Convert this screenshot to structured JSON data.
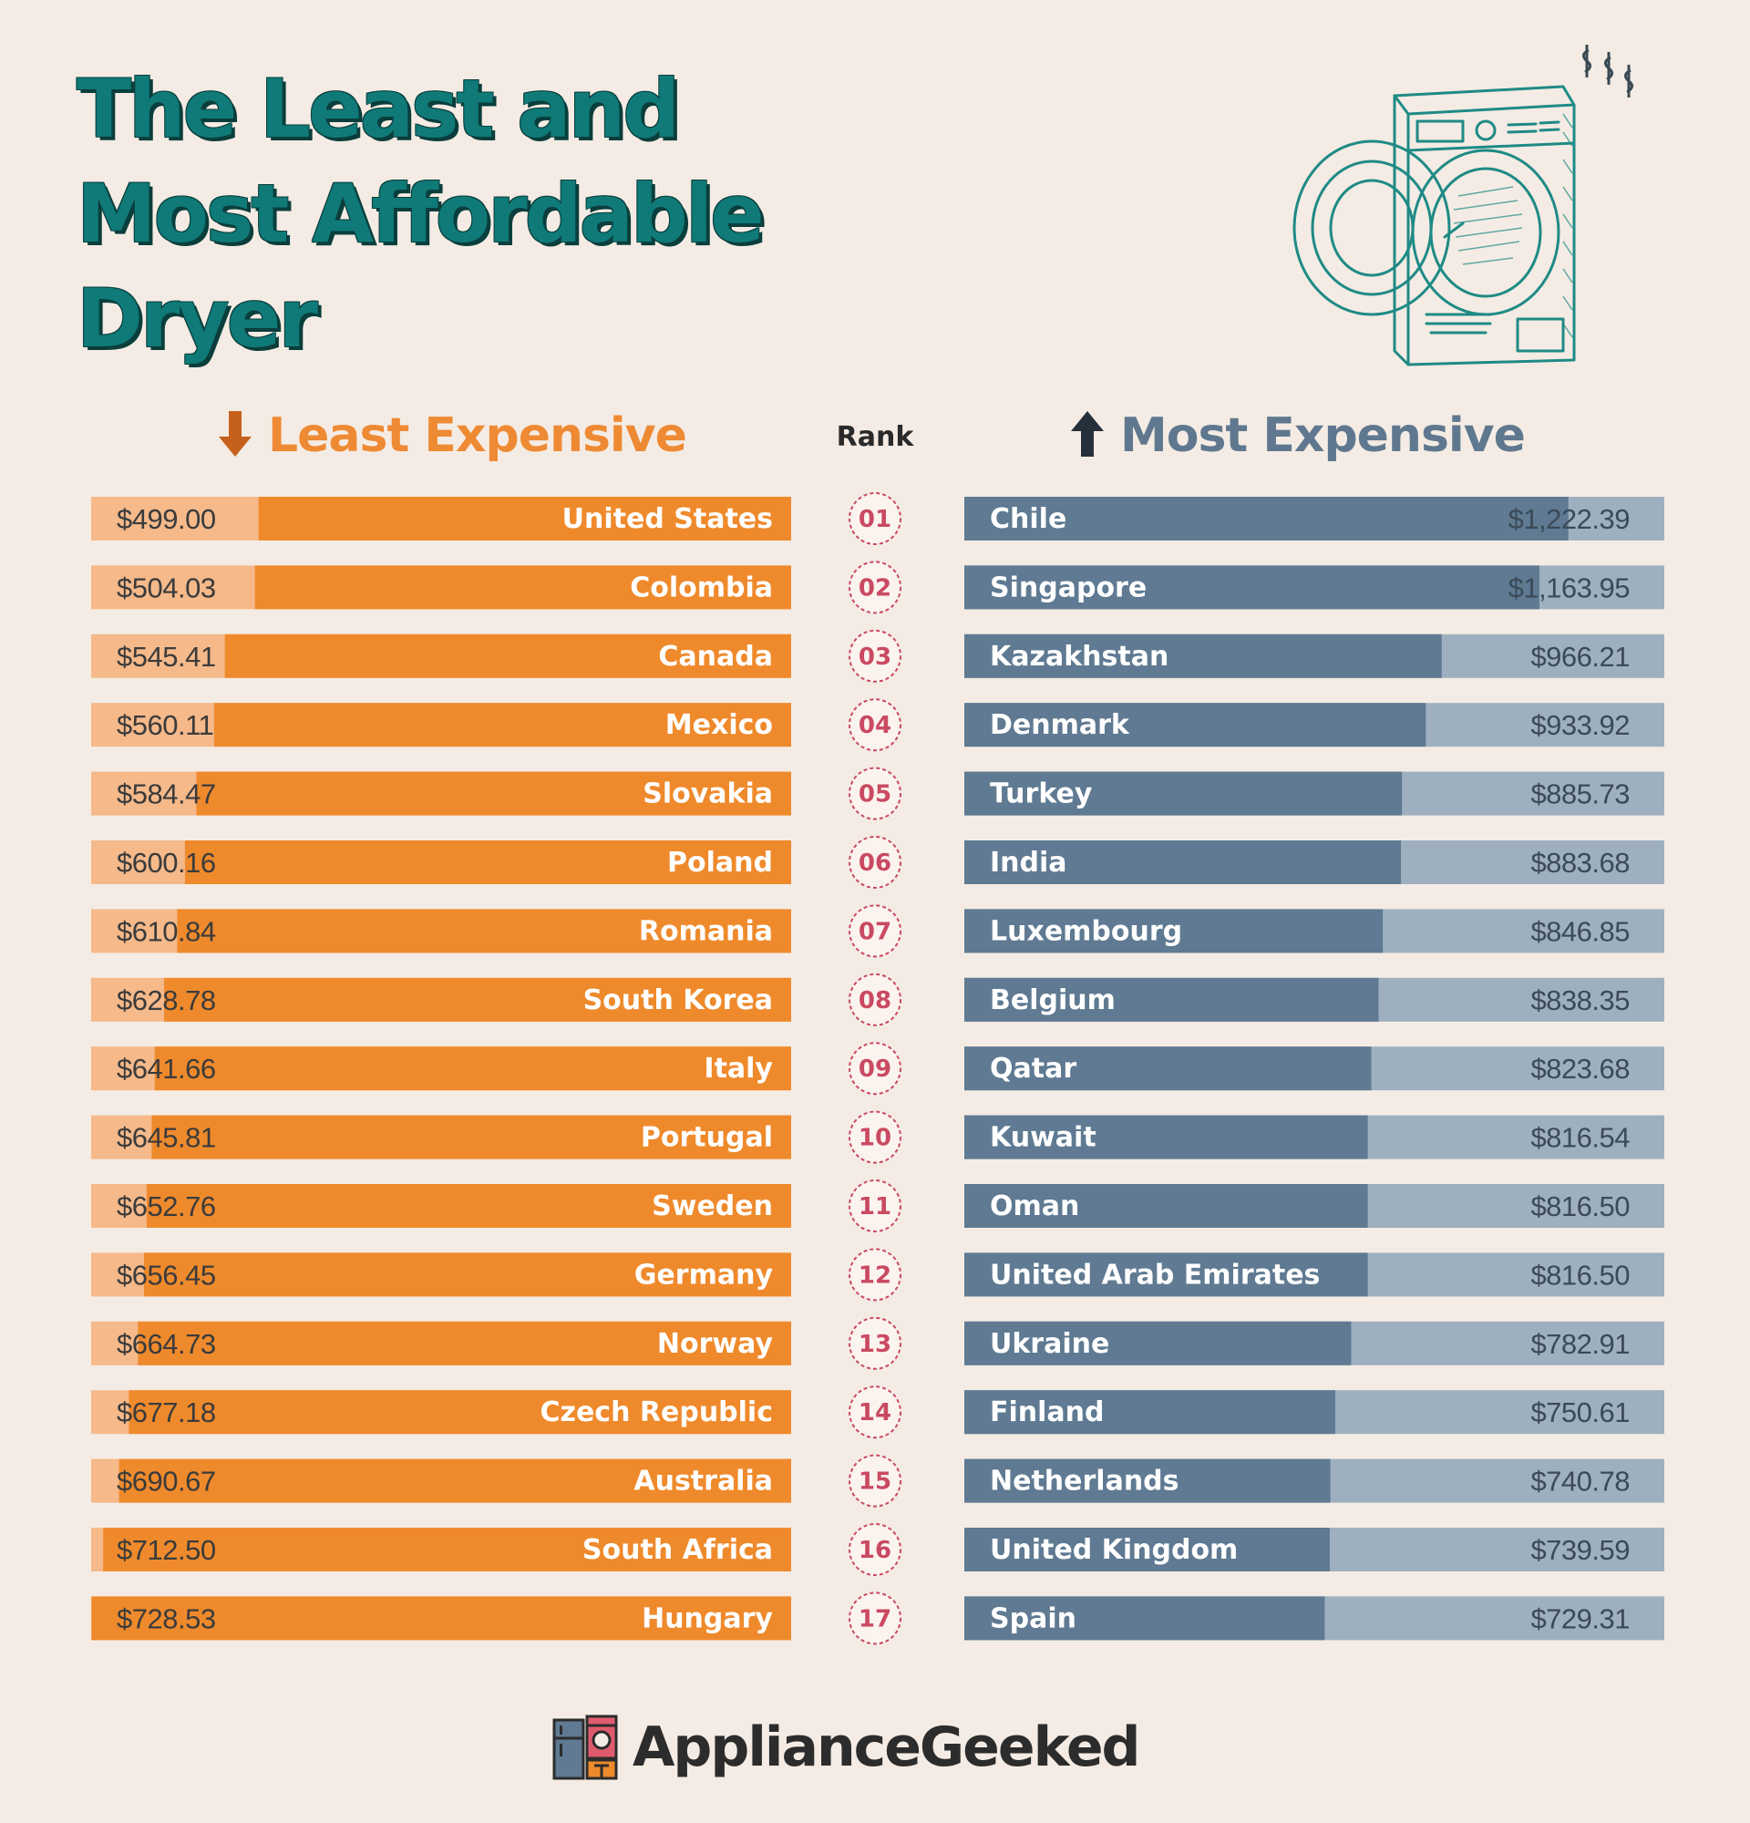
{
  "title": {
    "line1": "The Least and",
    "line2": "Most Affordable",
    "line3": "Dryer"
  },
  "headers": {
    "least": "Least Expensive",
    "most": "Most Expensive",
    "rank": "Rank"
  },
  "brand": {
    "name": "ApplianceGeeked"
  },
  "colors": {
    "least_bar": "#ef8a2c",
    "least_bg": "#f5b98a",
    "most_bar": "#5f7a92",
    "most_bg": "#9eb0c0",
    "rank": "#c94a61",
    "title": "#0f7a78"
  },
  "chart_data": {
    "type": "bar",
    "ranks": [
      "01",
      "02",
      "03",
      "04",
      "05",
      "06",
      "07",
      "08",
      "09",
      "10",
      "11",
      "12",
      "13",
      "14",
      "15",
      "16",
      "17"
    ],
    "series": [
      {
        "name": "Least Expensive",
        "categories": [
          "United States",
          "Colombia",
          "Canada",
          "Mexico",
          "Slovakia",
          "Poland",
          "Romania",
          "South Korea",
          "Italy",
          "Portugal",
          "Sweden",
          "Germany",
          "Norway",
          "Czech Republic",
          "Australia",
          "South Africa",
          "Hungary"
        ],
        "values": [
          499.0,
          504.03,
          545.41,
          560.11,
          584.47,
          600.16,
          610.84,
          628.78,
          641.66,
          645.81,
          652.76,
          656.45,
          664.73,
          677.18,
          690.67,
          712.5,
          728.53
        ],
        "labels": [
          "$499.00",
          "$504.03",
          "$545.41",
          "$560.11",
          "$584.47",
          "$600.16",
          "$610.84",
          "$628.78",
          "$641.66",
          "$645.81",
          "$652.76",
          "$656.45",
          "$664.73",
          "$677.18",
          "$690.67",
          "$712.50",
          "$728.53"
        ]
      },
      {
        "name": "Most Expensive",
        "categories": [
          "Chile",
          "Singapore",
          "Kazakhstan",
          "Denmark",
          "Turkey",
          "India",
          "Luxembourg",
          "Belgium",
          "Qatar",
          "Kuwait",
          "Oman",
          "United Arab Emirates",
          "Ukraine",
          "Finland",
          "Netherlands",
          "United Kingdom",
          "Spain"
        ],
        "values": [
          1222.39,
          1163.95,
          966.21,
          933.92,
          885.73,
          883.68,
          846.85,
          838.35,
          823.68,
          816.54,
          816.5,
          816.5,
          782.91,
          750.61,
          740.78,
          739.59,
          729.31
        ],
        "labels": [
          "$1,222.39",
          "$1,163.95",
          "$966.21",
          "$933.92",
          "$885.73",
          "$883.68",
          "$846.85",
          "$838.35",
          "$823.68",
          "$816.54",
          "$816.50",
          "$816.50",
          "$782.91",
          "$750.61",
          "$740.78",
          "$739.59",
          "$729.31"
        ]
      }
    ]
  }
}
